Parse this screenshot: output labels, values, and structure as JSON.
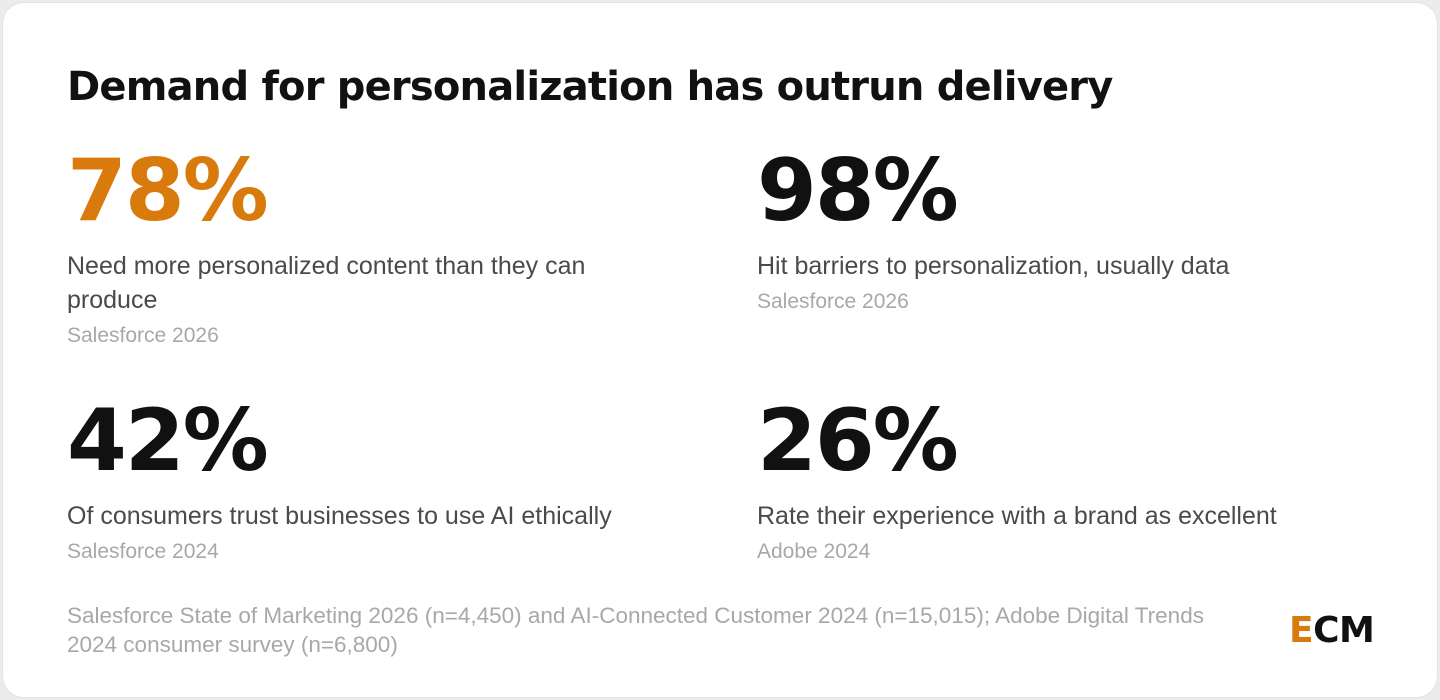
{
  "title": "Demand for personalization has outrun delivery",
  "stats": [
    {
      "value": "78%",
      "description": "Need more personalized content than they can produce",
      "source": "Salesforce 2026",
      "value_color": "#d97a0c"
    },
    {
      "value": "98%",
      "description": "Hit barriers to personalization, usually data",
      "source": "Salesforce 2026",
      "value_color": "#111111"
    },
    {
      "value": "42%",
      "description": "Of consumers trust businesses to use AI ethically",
      "source": "Salesforce 2024",
      "value_color": "#111111"
    },
    {
      "value": "26%",
      "description": "Rate their experience with a brand as excellent",
      "source": "Adobe 2024",
      "value_color": "#111111"
    }
  ],
  "footnote": "Salesforce State of Marketing 2026 (n=4,450) and AI-Connected Customer 2024 (n=15,015); Adobe Digital Trends 2024 consumer survey (n=6,800)",
  "logo": {
    "letter_accent": "E",
    "letters_rest": "CM",
    "accent_color": "#d97a0c"
  }
}
